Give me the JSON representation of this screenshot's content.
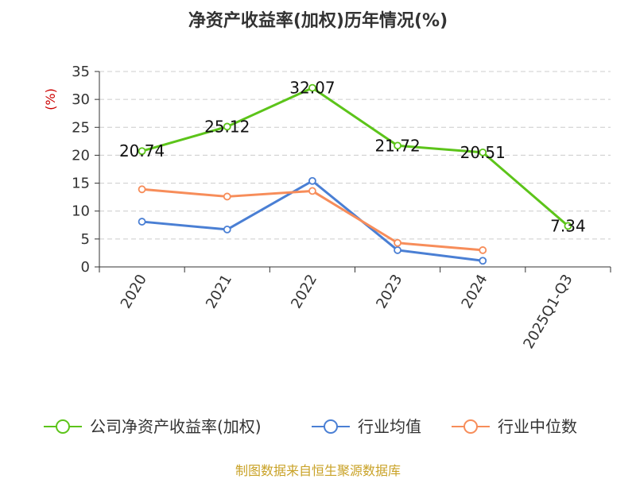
{
  "chart_data": {
    "type": "line",
    "title": "净资产收益率(加权)历年情况(%)",
    "unit_label": "(%)",
    "categories": [
      "2020",
      "2021",
      "2022",
      "2023",
      "2024",
      "2025Q1-Q3"
    ],
    "ylim": [
      0,
      35
    ],
    "yticks": [
      0,
      5,
      10,
      15,
      20,
      25,
      30,
      35
    ],
    "grid": true,
    "legend_position": "bottom",
    "series": [
      {
        "name": "公司净资产收益率(加权)",
        "color": "#5cc41a",
        "values": [
          20.74,
          25.12,
          32.07,
          21.72,
          20.51,
          7.34
        ],
        "labels": [
          "20.74",
          "25.12",
          "32.07",
          "21.72",
          "20.51",
          "7.34"
        ]
      },
      {
        "name": "行业均值",
        "color": "#4a7fd4",
        "values": [
          8.1,
          6.7,
          15.4,
          3.0,
          1.1,
          null
        ]
      },
      {
        "name": "行业中位数",
        "color": "#f78d5a",
        "values": [
          13.9,
          12.6,
          13.6,
          4.3,
          3.0,
          null
        ]
      }
    ]
  },
  "footer": {
    "source": "制图数据来自恒生聚源数据库"
  }
}
